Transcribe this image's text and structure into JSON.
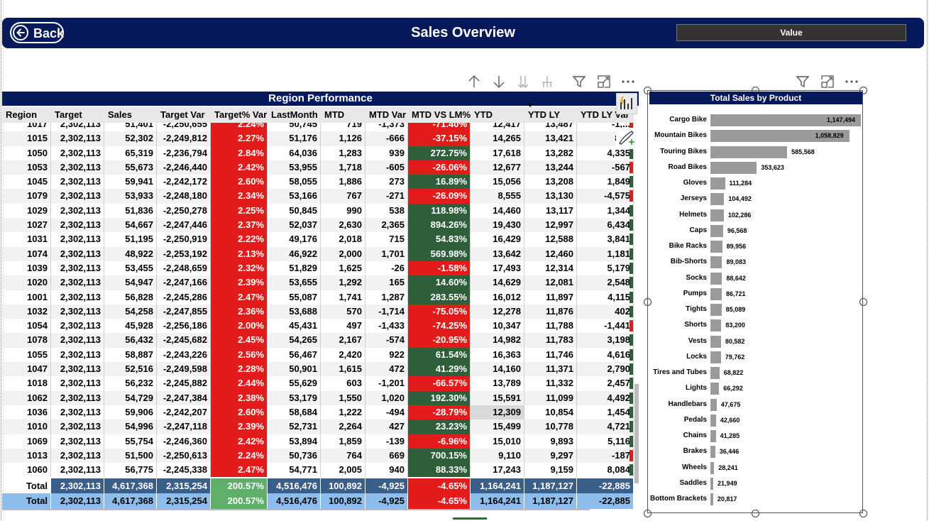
{
  "header": {
    "back_label": "Back",
    "title": "Sales Overview",
    "value_label": "Value"
  },
  "table": {
    "title": "Region Performance",
    "columns": [
      "Region",
      "Target",
      "Sales",
      "Target Var",
      "Target% Var",
      "LastMonth",
      "MTD",
      "MTD Var",
      "MTD VS LM%",
      "YTD",
      "YTD LY",
      "YTD LY Var"
    ],
    "partial_row": [
      "1017",
      "2,302,113",
      "51,401",
      "-2,250,655",
      "2.24%",
      "50,745",
      "719",
      "-1,373",
      "-71.40%",
      "12,417",
      "13,487",
      "-1,..."
    ],
    "rows": [
      [
        "1015",
        "2,302,113",
        "52,302",
        "-2,249,812",
        "2.27%",
        "51,176",
        "1,126",
        "-666",
        "-37.15%",
        "14,265",
        "13,421",
        "844"
      ],
      [
        "1050",
        "2,302,113",
        "65,319",
        "-2,236,794",
        "2.84%",
        "64,036",
        "1,283",
        "939",
        "272.75%",
        "17,618",
        "13,282",
        "4,335"
      ],
      [
        "1053",
        "2,302,113",
        "55,673",
        "-2,246,440",
        "2.42%",
        "53,955",
        "1,718",
        "-605",
        "-26.06%",
        "12,677",
        "13,244",
        "-567"
      ],
      [
        "1045",
        "2,302,113",
        "59,941",
        "-2,242,172",
        "2.60%",
        "58,055",
        "1,886",
        "273",
        "16.89%",
        "15,056",
        "13,208",
        "1,849"
      ],
      [
        "1079",
        "2,302,113",
        "53,933",
        "-2,248,180",
        "2.34%",
        "53,166",
        "767",
        "-271",
        "-26.09%",
        "8,555",
        "13,130",
        "-4,575"
      ],
      [
        "1029",
        "2,302,113",
        "51,836",
        "-2,250,278",
        "2.25%",
        "50,845",
        "990",
        "538",
        "118.98%",
        "14,460",
        "13,117",
        "1,344"
      ],
      [
        "1027",
        "2,302,113",
        "54,667",
        "-2,247,446",
        "2.37%",
        "52,037",
        "2,630",
        "2,365",
        "894.26%",
        "19,430",
        "12,997",
        "6,434"
      ],
      [
        "1031",
        "2,302,113",
        "51,195",
        "-2,250,919",
        "2.22%",
        "49,176",
        "2,018",
        "715",
        "54.83%",
        "16,429",
        "12,588",
        "3,841"
      ],
      [
        "1074",
        "2,302,113",
        "48,922",
        "-2,253,192",
        "2.13%",
        "46,922",
        "2,000",
        "1,701",
        "569.98%",
        "13,642",
        "12,460",
        "1,181"
      ],
      [
        "1039",
        "2,302,113",
        "53,455",
        "-2,248,659",
        "2.32%",
        "51,829",
        "1,625",
        "-26",
        "-1.58%",
        "17,493",
        "12,314",
        "5,179"
      ],
      [
        "1020",
        "2,302,113",
        "54,947",
        "-2,247,166",
        "2.39%",
        "53,655",
        "1,292",
        "165",
        "14.60%",
        "14,629",
        "12,081",
        "2,548"
      ],
      [
        "1001",
        "2,302,113",
        "56,828",
        "-2,245,286",
        "2.47%",
        "55,087",
        "1,741",
        "1,287",
        "283.55%",
        "16,012",
        "11,897",
        "4,115"
      ],
      [
        "1032",
        "2,302,113",
        "54,258",
        "-2,247,855",
        "2.36%",
        "53,688",
        "570",
        "-1,714",
        "-75.05%",
        "12,278",
        "11,876",
        "402"
      ],
      [
        "1054",
        "2,302,113",
        "45,928",
        "-2,256,186",
        "2.00%",
        "45,431",
        "497",
        "-1,433",
        "-74.25%",
        "10,347",
        "11,788",
        "-1,441"
      ],
      [
        "1078",
        "2,302,113",
        "56,432",
        "-2,245,682",
        "2.45%",
        "54,265",
        "2,167",
        "-574",
        "-20.95%",
        "14,982",
        "11,783",
        "3,198"
      ],
      [
        "1055",
        "2,302,113",
        "58,887",
        "-2,243,226",
        "2.56%",
        "56,467",
        "2,420",
        "922",
        "61.54%",
        "16,363",
        "11,746",
        "4,616"
      ],
      [
        "1047",
        "2,302,113",
        "52,516",
        "-2,249,598",
        "2.28%",
        "50,901",
        "1,615",
        "472",
        "41.29%",
        "14,160",
        "11,371",
        "2,790"
      ],
      [
        "1018",
        "2,302,113",
        "56,232",
        "-2,245,882",
        "2.44%",
        "55,629",
        "603",
        "-1,201",
        "-66.57%",
        "13,789",
        "11,332",
        "2,457"
      ],
      [
        "1062",
        "2,302,113",
        "54,729",
        "-2,247,384",
        "2.38%",
        "53,179",
        "1,550",
        "1,020",
        "192.30%",
        "15,591",
        "11,099",
        "4,492"
      ],
      [
        "1036",
        "2,302,113",
        "59,906",
        "-2,242,207",
        "2.60%",
        "58,684",
        "1,222",
        "-494",
        "-28.79%",
        "12,309",
        "10,854",
        "1,454"
      ],
      [
        "1010",
        "2,302,113",
        "54,996",
        "-2,247,118",
        "2.39%",
        "52,731",
        "2,264",
        "427",
        "23.23%",
        "15,499",
        "10,778",
        "4,721"
      ],
      [
        "1069",
        "2,302,113",
        "55,754",
        "-2,246,360",
        "2.42%",
        "53,894",
        "1,859",
        "-139",
        "-6.96%",
        "15,010",
        "9,893",
        "5,116"
      ],
      [
        "1013",
        "2,302,113",
        "51,500",
        "-2,250,613",
        "2.24%",
        "50,736",
        "764",
        "669",
        "700.15%",
        "9,110",
        "9,297",
        "-187"
      ],
      [
        "1060",
        "2,302,113",
        "56,775",
        "-2,245,338",
        "2.47%",
        "54,771",
        "2,005",
        "940",
        "88.33%",
        "17,243",
        "9,159",
        "8,084"
      ]
    ],
    "totals": [
      "Total",
      "2,302,113",
      "4,617,368",
      "2,315,254",
      "200.57%",
      "4,516,476",
      "100,892",
      "-4,925",
      "-4.65%",
      "1,164,241",
      "1,187,127",
      "-22,885"
    ]
  },
  "chart_data": {
    "type": "bar",
    "orientation": "horizontal",
    "title": "Total Sales by Product",
    "categories": [
      "Cargo Bike",
      "Mountain Bikes",
      "Touring Bikes",
      "Road Bikes",
      "Gloves",
      "Jerseys",
      "Helmets",
      "Caps",
      "Bike Racks",
      "Bib-Shorts",
      "Socks",
      "Pumps",
      "Tights",
      "Shorts",
      "Vests",
      "Locks",
      "Tires and Tubes",
      "Lights",
      "Handlebars",
      "Pedals",
      "Chains",
      "Brakes",
      "Wheels",
      "Saddles",
      "Bottom Brackets"
    ],
    "values": [
      1147494,
      1058829,
      585568,
      353623,
      111284,
      104492,
      102286,
      96568,
      89956,
      89083,
      88642,
      86721,
      85089,
      83200,
      80582,
      79762,
      68822,
      66292,
      47675,
      42660,
      41285,
      36446,
      28241,
      21949,
      20817
    ],
    "value_labels": [
      "1,147,494",
      "1,058,829",
      "585,568",
      "353,623",
      "111,284",
      "104,492",
      "102,286",
      "96,568",
      "89,956",
      "89,083",
      "88,642",
      "86,721",
      "85,089",
      "83,200",
      "80,582",
      "79,762",
      "68,822",
      "66,292",
      "47,675",
      "42,660",
      "41,285",
      "36,446",
      "28,241",
      "21,949",
      "20,817"
    ],
    "bar_color": "#9a9a9a"
  },
  "colors": {
    "header": "#061a5b",
    "negative": "#e31b1b",
    "positive": "#2f5e3b",
    "total_row": "#3a5e8a",
    "total_row_2": "#8dbdea"
  },
  "icons": [
    "arrow-up-icon",
    "arrow-down-icon",
    "drill-down-icon",
    "expand-hierarchy-icon",
    "filter-icon",
    "focus-mode-icon",
    "more-options-icon"
  ]
}
